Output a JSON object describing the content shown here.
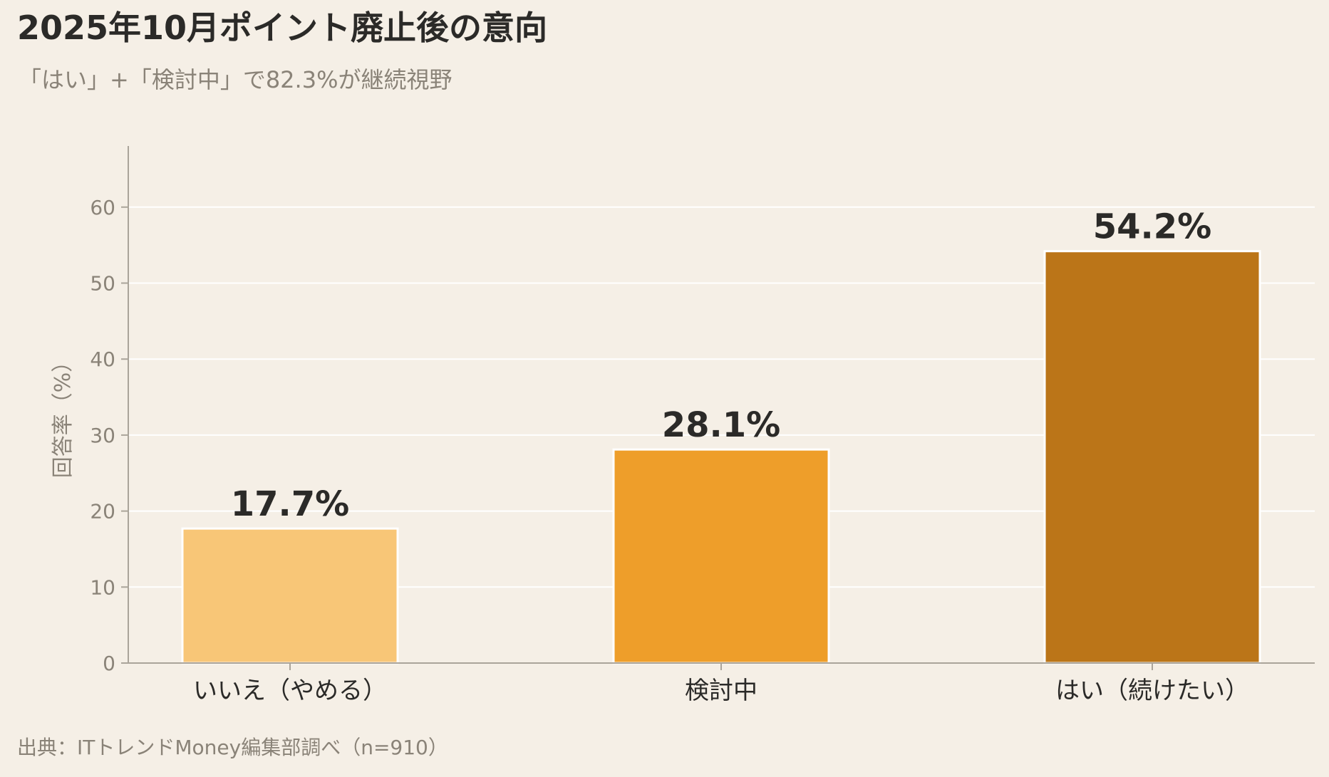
{
  "chart_data": {
    "type": "bar",
    "title": "2025年10月ポイント廃止後の意向",
    "subtitle": "「はい」+「検討中」で82.3%が継続視野",
    "source": "出典：ITトレンドMoney編集部調べ（n=910）",
    "xlabel": "",
    "ylabel": "回答率（%）",
    "ylim": [
      0,
      68
    ],
    "yticks": [
      0,
      10,
      20,
      30,
      40,
      50,
      60
    ],
    "grid": true,
    "categories": [
      "いいえ（やめる）",
      "検討中",
      "はい（続けたい）"
    ],
    "values": [
      17.7,
      28.1,
      54.2
    ],
    "data_labels": [
      "17.7%",
      "28.1%",
      "54.2%"
    ],
    "colors": [
      "#f8c677",
      "#ee9e2a",
      "#bb7518"
    ],
    "background": "#f5efe6"
  }
}
